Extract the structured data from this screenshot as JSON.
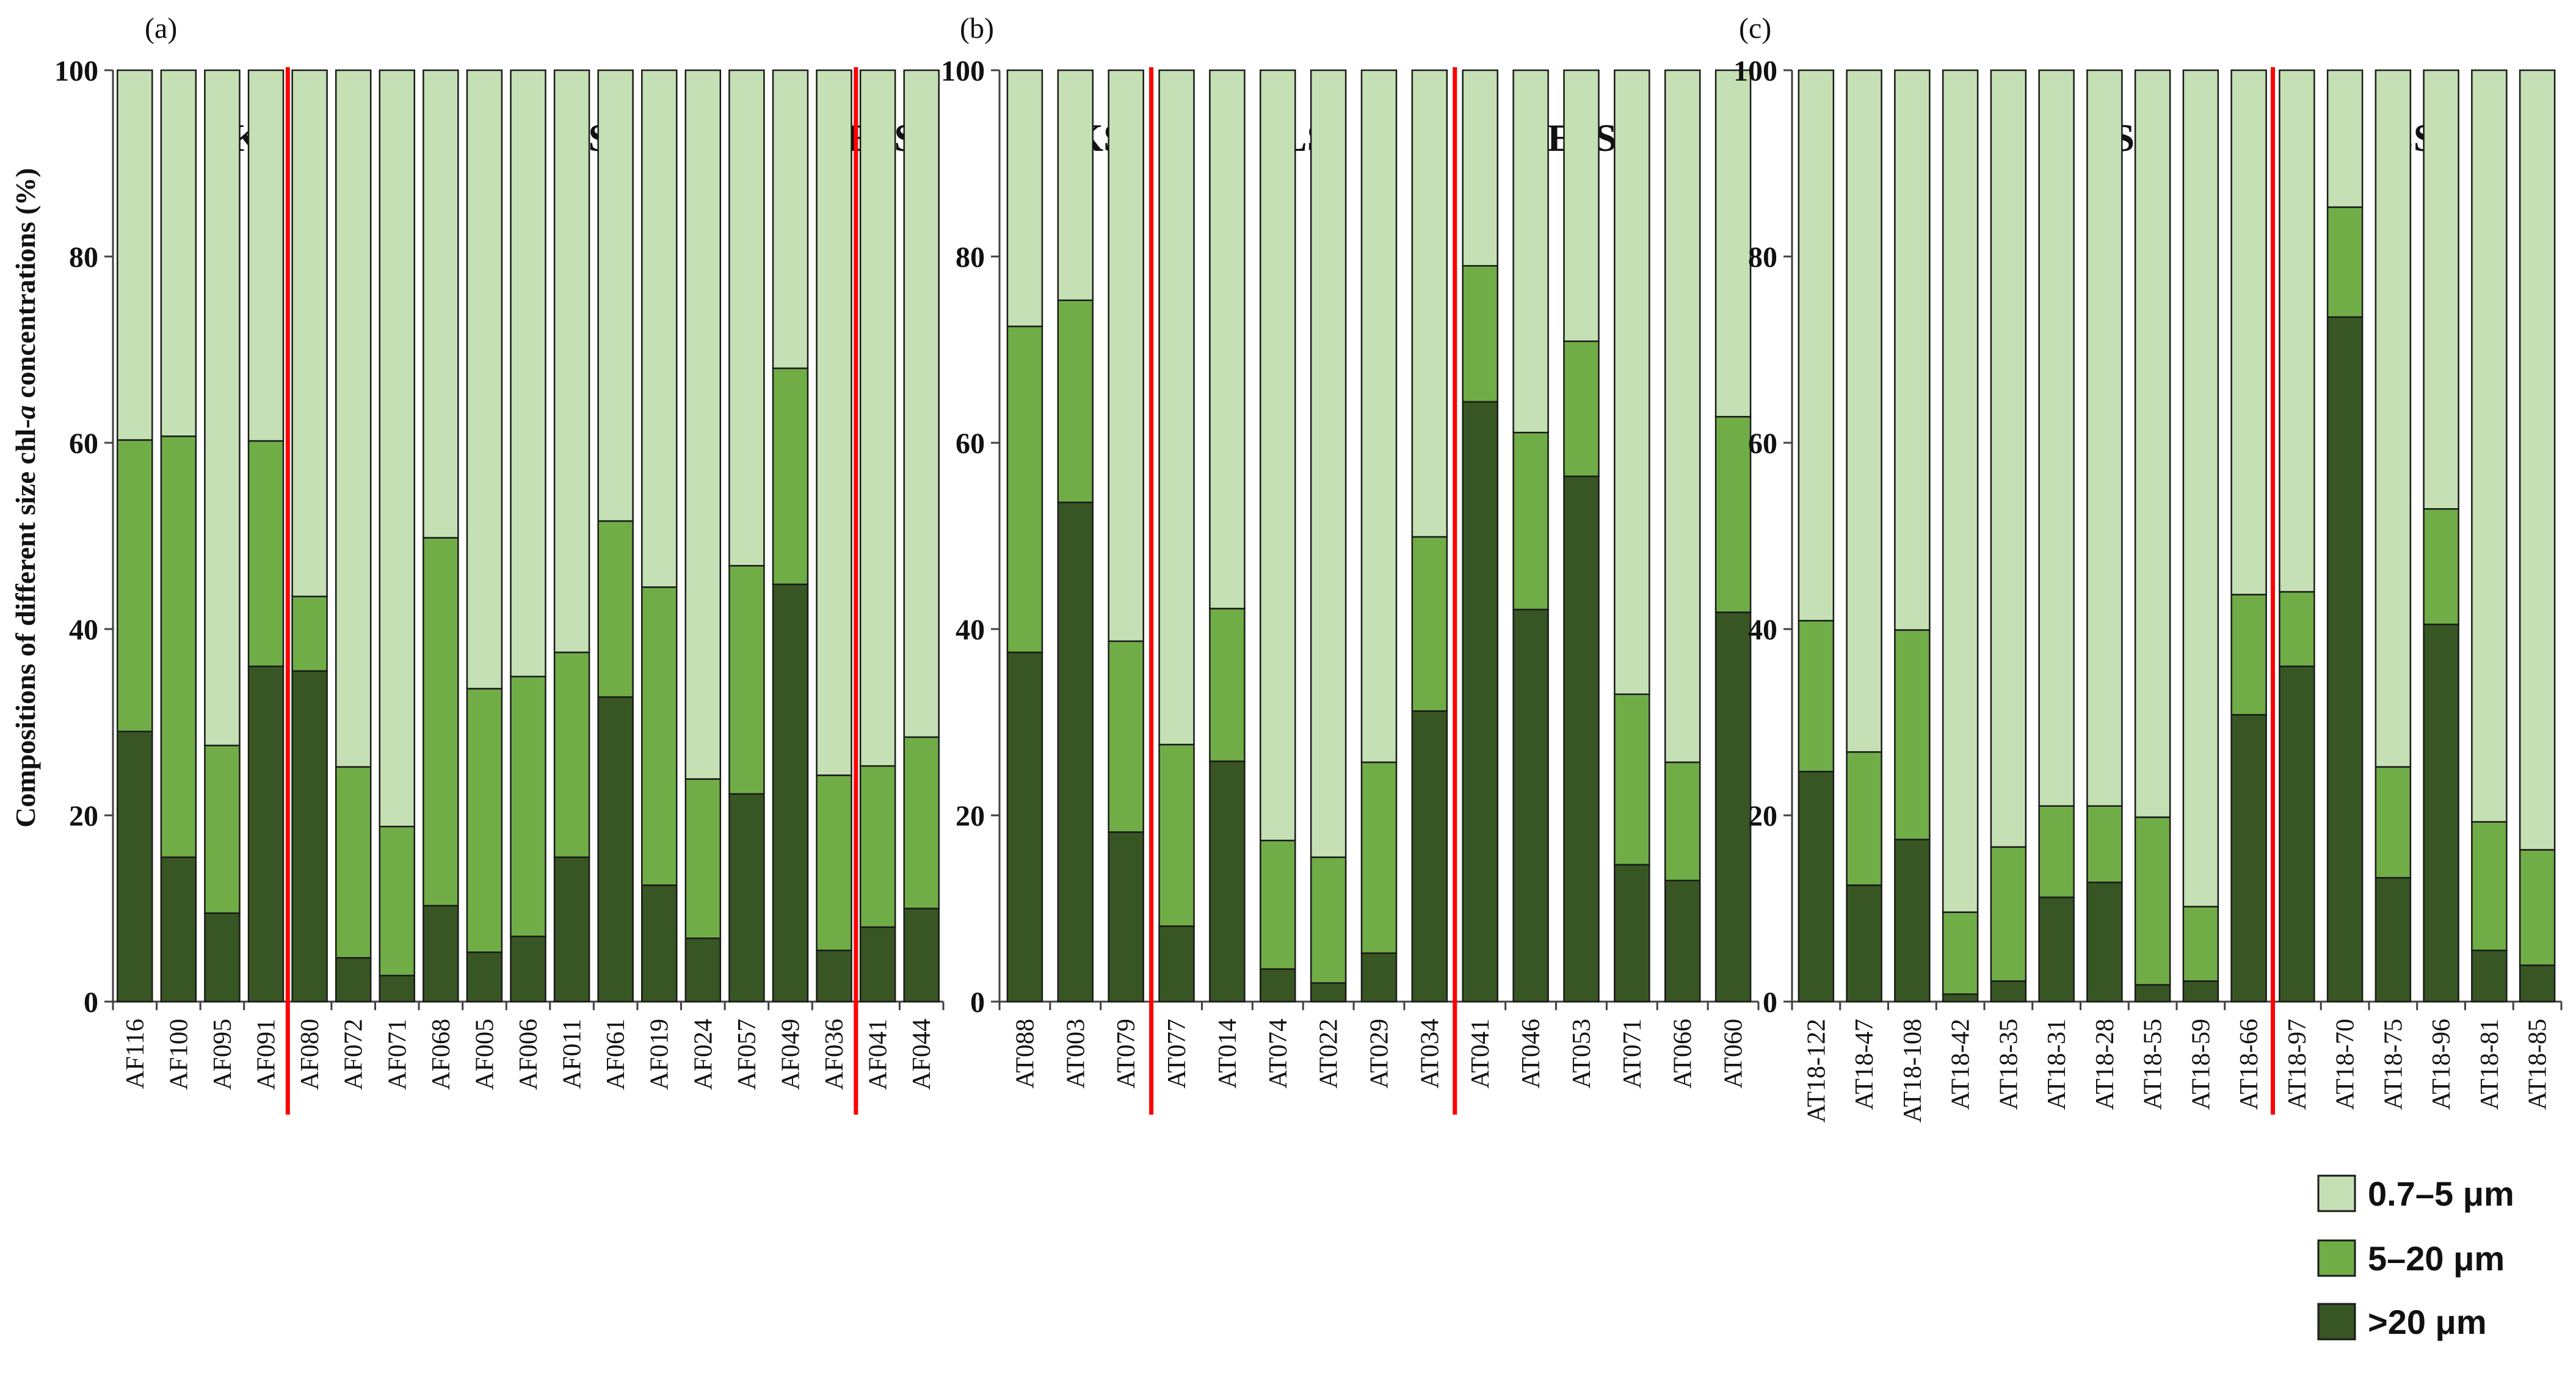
{
  "colors": {
    "s1": "#c5e0b4",
    "s2": "#70ad47",
    "s3": "#375623",
    "divider": "#ff0000",
    "edge": "#1a1a1a"
  },
  "ylabel": "Compositions of different size chl-a concentrations (%)",
  "ylabel_parts": {
    "before": "Compositions of different size chl-",
    "italic": "a",
    "after": " concentrations (%)"
  },
  "legend": {
    "items": [
      {
        "label": "0.7–5  μm",
        "color": "#c5e0b4"
      },
      {
        "label": "5–20  μm",
        "color": "#70ad47"
      },
      {
        "label": ">20  μm",
        "color": "#375623"
      }
    ]
  },
  "chart_data": [
    {
      "type": "bar",
      "stacked": true,
      "panel_label": "(a)",
      "ylim": [
        0,
        100
      ],
      "yticks": [
        "0",
        "20",
        "40",
        "60",
        "80",
        "100"
      ],
      "ylabel": "Compositions of different size chl-a concentrations (%)",
      "categories": [
        "AF116",
        "AF100",
        "AF095",
        "AF091",
        "AF080",
        "AF072",
        "AF071",
        "AF068",
        "AF005",
        "AF006",
        "AF011",
        "AF061",
        "AF019",
        "AF024",
        "AF057",
        "AF049",
        "AF036",
        "AF041",
        "AF044"
      ],
      "series": [
        {
          "name": ">20  μm",
          "values": [
            29,
            15.5,
            9.5,
            36,
            35.5,
            4.7,
            2.8,
            10.3,
            5.3,
            7,
            15.5,
            32.7,
            12.5,
            6.8,
            22.3,
            44.8,
            5.5,
            8,
            10
          ]
        },
        {
          "name": "5–20  μm",
          "values": [
            31.3,
            45.2,
            18,
            24.2,
            8,
            20.5,
            16,
            39.5,
            28.3,
            27.9,
            22,
            18.9,
            32,
            17.1,
            24.5,
            23.2,
            18.8,
            17.3,
            18.4
          ]
        },
        {
          "name": "0.7–5  μm",
          "values": [
            39.7,
            39.3,
            72.5,
            39.8,
            56.5,
            74.8,
            81.2,
            50.2,
            66.4,
            65.1,
            62.5,
            48.4,
            55.5,
            76.1,
            53.2,
            32,
            75.7,
            74.7,
            71.6
          ]
        }
      ],
      "regions": [
        "KS",
        "LS",
        "ESS"
      ],
      "dividers_after": [
        4,
        17
      ]
    },
    {
      "type": "bar",
      "stacked": true,
      "panel_label": "(b)",
      "ylim": [
        0,
        100
      ],
      "yticks": [
        "0",
        "20",
        "40",
        "60",
        "80",
        "100"
      ],
      "categories": [
        "AT088",
        "AT003",
        "AT079",
        "AT077",
        "AT014",
        "AT074",
        "AT022",
        "AT029",
        "AT034",
        "AT041",
        "AT046",
        "AT053",
        "AT071",
        "AT066",
        "AT060"
      ],
      "series": [
        {
          "name": ">20  μm",
          "values": [
            37.5,
            53.6,
            18.2,
            8.1,
            25.8,
            3.5,
            2,
            5.2,
            31.2,
            64.4,
            42.1,
            56.4,
            14.7,
            13,
            41.8
          ]
        },
        {
          "name": "5–20  μm",
          "values": [
            35,
            21.7,
            20.5,
            19.5,
            16.4,
            13.8,
            13.5,
            20.5,
            18.7,
            14.6,
            19,
            14.5,
            18.3,
            12.7,
            21
          ]
        },
        {
          "name": "0.7–5  μm",
          "values": [
            27.5,
            24.7,
            61.3,
            72.4,
            57.8,
            82.7,
            84.5,
            74.3,
            50.1,
            21,
            38.9,
            29.1,
            67,
            74.3,
            37.2
          ]
        }
      ],
      "regions": [
        "KS",
        "LS",
        "ESS"
      ],
      "dividers_after": [
        3,
        9
      ]
    },
    {
      "type": "bar",
      "stacked": true,
      "panel_label": "(c)",
      "ylim": [
        0,
        100
      ],
      "yticks": [
        "0",
        "20",
        "40",
        "60",
        "80",
        "100"
      ],
      "categories": [
        "AT18-122",
        "AT18-47",
        "AT18-108",
        "AT18-42",
        "AT18-35",
        "AT18-31",
        "AT18-28",
        "AT18-55",
        "AT18-59",
        "AT18-66",
        "AT18-97",
        "AT18-70",
        "AT18-75",
        "AT18-96",
        "AT18-81",
        "AT18-85"
      ],
      "series": [
        {
          "name": ">20  μm",
          "values": [
            24.7,
            12.5,
            17.4,
            0.8,
            2.2,
            11.2,
            12.8,
            1.8,
            2.2,
            30.8,
            36,
            73.5,
            13.3,
            40.5,
            5.5,
            3.9
          ]
        },
        {
          "name": "5–20  μm",
          "values": [
            16.2,
            14.3,
            22.5,
            8.8,
            14.4,
            9.8,
            8.2,
            18,
            8,
            12.9,
            8,
            11.8,
            11.9,
            12.4,
            13.8,
            12.4
          ]
        },
        {
          "name": "0.7–5  μm",
          "values": [
            59.1,
            73.2,
            60.1,
            90.4,
            83.4,
            79,
            79,
            80.2,
            89.8,
            56.3,
            56,
            14.7,
            74.8,
            47.1,
            80.7,
            83.7
          ]
        }
      ],
      "regions": [
        "LS",
        "ESS"
      ],
      "dividers_after": [
        10
      ]
    }
  ]
}
